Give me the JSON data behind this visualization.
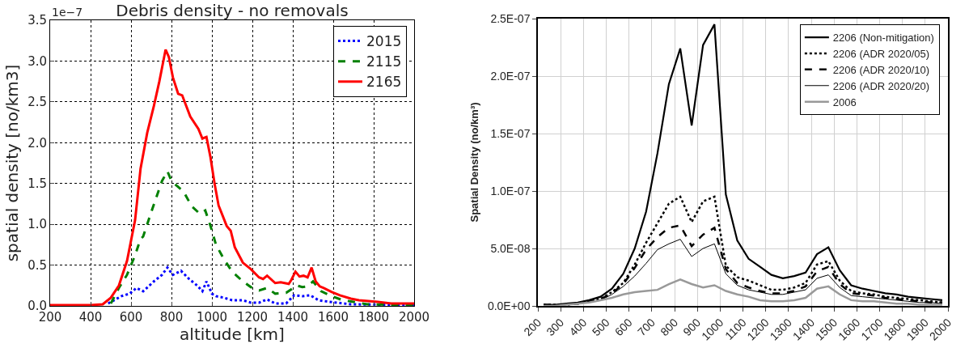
{
  "chart_data": [
    {
      "type": "line",
      "title": "Debris density - no removals",
      "xlabel": "altitude [km]",
      "ylabel": "spatial density [no/km3]",
      "annotations": [
        "1e−7"
      ],
      "xlim": [
        200,
        2000
      ],
      "xticks": [
        200,
        400,
        600,
        800,
        1000,
        1200,
        1400,
        1600,
        1800,
        2000
      ],
      "ylim": [
        0,
        3.5
      ],
      "yticks": [
        {
          "value": 0,
          "label": "0.0"
        },
        {
          "value": 0.5,
          "label": "0.5"
        },
        {
          "value": 1,
          "label": "1.0"
        },
        {
          "value": 1.5,
          "label": "1.5"
        },
        {
          "value": 2,
          "label": "2.0"
        },
        {
          "value": 2.5,
          "label": "2.5"
        },
        {
          "value": 3,
          "label": "3.0"
        },
        {
          "value": 3.5,
          "label": "3.5"
        }
      ],
      "grid": true,
      "legend": "top right",
      "series": [
        {
          "name": "2015",
          "color": "#0000ff",
          "line_style": "dotted",
          "x": [
            487,
            553,
            593,
            627,
            660,
            713,
            753,
            780,
            807,
            847,
            887,
            927,
            953,
            973,
            1000,
            1020,
            1060,
            1100,
            1153,
            1193,
            1233,
            1273,
            1313,
            1367,
            1407,
            1447,
            1487,
            1527,
            1580,
            1687,
            2000
          ],
          "values": [
            0.03,
            0.12,
            0.15,
            0.22,
            0.18,
            0.3,
            0.38,
            0.47,
            0.38,
            0.43,
            0.33,
            0.25,
            0.18,
            0.3,
            0.15,
            0.12,
            0.1,
            0.07,
            0.07,
            0.04,
            0.04,
            0.08,
            0.03,
            0.03,
            0.13,
            0.12,
            0.13,
            0.07,
            0.05,
            0.02,
            0.01
          ]
        },
        {
          "name": "2115",
          "color": "#008000",
          "line_style": "dashed",
          "x": [
            500,
            540,
            580,
            620,
            647,
            660,
            700,
            753,
            780,
            800,
            827,
            860,
            900,
            940,
            967,
            993,
            1020,
            1060,
            1100,
            1153,
            1193,
            1233,
            1273,
            1313,
            1367,
            1420,
            1447,
            1473,
            1500,
            1540,
            1593,
            1647,
            1700,
            1767,
            2000
          ],
          "values": [
            0.03,
            0.22,
            0.38,
            0.62,
            0.82,
            0.85,
            1.15,
            1.53,
            1.65,
            1.53,
            1.47,
            1.4,
            1.22,
            1.13,
            1.17,
            0.98,
            0.75,
            0.57,
            0.42,
            0.3,
            0.23,
            0.19,
            0.22,
            0.15,
            0.16,
            0.25,
            0.23,
            0.24,
            0.3,
            0.18,
            0.12,
            0.07,
            0.05,
            0.02,
            0.01
          ]
        },
        {
          "name": "2165",
          "color": "#ff0000",
          "line_style": "solid",
          "x": [
            200,
            300,
            400,
            460,
            500,
            540,
            580,
            620,
            647,
            680,
            713,
            740,
            771,
            787,
            807,
            833,
            853,
            893,
            933,
            953,
            973,
            993,
            1013,
            1033,
            1073,
            1093,
            1113,
            1153,
            1193,
            1233,
            1253,
            1273,
            1313,
            1340,
            1380,
            1393,
            1413,
            1433,
            1453,
            1473,
            1493,
            1513,
            1533,
            1553,
            1593,
            1633,
            1687,
            1727,
            1820,
            1887,
            2000
          ],
          "values": [
            0.01,
            0.01,
            0.01,
            0.02,
            0.1,
            0.25,
            0.55,
            1.05,
            1.68,
            2.12,
            2.45,
            2.75,
            3.14,
            3.05,
            2.8,
            2.6,
            2.58,
            2.32,
            2.17,
            2.05,
            2.07,
            1.82,
            1.5,
            1.23,
            0.98,
            0.92,
            0.72,
            0.53,
            0.45,
            0.35,
            0.33,
            0.37,
            0.28,
            0.29,
            0.27,
            0.32,
            0.42,
            0.36,
            0.37,
            0.35,
            0.47,
            0.3,
            0.24,
            0.22,
            0.17,
            0.13,
            0.09,
            0.07,
            0.05,
            0.03,
            0.03
          ]
        }
      ]
    },
    {
      "type": "line",
      "ylabel": "Spatial Density (no/km³)",
      "xlim": [
        200,
        2000
      ],
      "xticks": [
        200,
        300,
        400,
        500,
        600,
        700,
        800,
        900,
        1000,
        1100,
        1200,
        1300,
        1400,
        1500,
        1600,
        1700,
        1800,
        1900,
        2000
      ],
      "ylim": [
        0,
        2.5e-07
      ],
      "yticks": [
        {
          "value": 0,
          "label": "0.0E+00"
        },
        {
          "value": 5e-08,
          "label": "5.0E-08"
        },
        {
          "value": 1e-07,
          "label": "1.0E-07"
        },
        {
          "value": 1.5e-07,
          "label": "1.5E-07"
        },
        {
          "value": 2e-07,
          "label": "2.0E-07"
        },
        {
          "value": 2.5e-07,
          "label": "2.5E-07"
        }
      ],
      "grid": true,
      "legend": "top right",
      "x": [
        225,
        275,
        325,
        375,
        425,
        475,
        525,
        575,
        625,
        675,
        725,
        775,
        825,
        875,
        925,
        975,
        1025,
        1075,
        1125,
        1175,
        1225,
        1275,
        1325,
        1375,
        1425,
        1475,
        1525,
        1575,
        1625,
        1675,
        1725,
        1775,
        1825,
        1875,
        1925,
        1975
      ],
      "series": [
        {
          "name": "2206 (Non-mitigation)",
          "color": "#000000",
          "line_style": "solid",
          "values": [
            1e-09,
            1e-09,
            2e-09,
            3e-09,
            5e-09,
            8e-09,
            1.5e-08,
            2.8e-08,
            5e-08,
            8.2e-08,
            1.33e-07,
            1.93e-07,
            2.24e-07,
            1.57e-07,
            2.27e-07,
            2.45e-07,
            9.7e-08,
            5.7e-08,
            4.1e-08,
            3.4e-08,
            2.7e-08,
            2.4e-08,
            2.6e-08,
            2.9e-08,
            4.5e-08,
            5.1e-08,
            3.1e-08,
            1.8e-08,
            1.5e-08,
            1.3e-08,
            1.1e-08,
            1e-08,
            8e-09,
            7e-09,
            6e-09,
            5e-09
          ]
        },
        {
          "name": "2206 (ADR 2020/05)",
          "color": "#000000",
          "line_style": "dotted",
          "values": [
            1e-09,
            1e-09,
            1e-09,
            2e-09,
            4e-09,
            6e-09,
            1.2e-08,
            2e-08,
            3.6e-08,
            5.5e-08,
            7.2e-08,
            8.9e-08,
            9.5e-08,
            7.3e-08,
            9.1e-08,
            9.5e-08,
            3.5e-08,
            2.5e-08,
            2.2e-08,
            1.8e-08,
            1.4e-08,
            1.4e-08,
            1.6e-08,
            2e-08,
            3.6e-08,
            3.9e-08,
            2.2e-08,
            1.3e-08,
            1.1e-08,
            1e-08,
            8e-09,
            7e-09,
            6e-09,
            5e-09,
            4e-09,
            3e-09
          ]
        },
        {
          "name": "2206 (ADR 2020/10)",
          "color": "#000000",
          "line_style": "dashed",
          "values": [
            1e-09,
            1e-09,
            1e-09,
            2e-09,
            4e-09,
            6e-09,
            1.1e-08,
            1.9e-08,
            3.3e-08,
            4.9e-08,
            6e-08,
            6.8e-08,
            7e-08,
            5.2e-08,
            6.2e-08,
            6.8e-08,
            3.2e-08,
            2e-08,
            1.6e-08,
            1.3e-08,
            1.1e-08,
            1.1e-08,
            1.3e-08,
            1.7e-08,
            3e-08,
            3.4e-08,
            1.9e-08,
            1.1e-08,
            1e-08,
            9e-09,
            7e-09,
            6e-09,
            5e-09,
            4e-09,
            3e-09,
            3e-09
          ]
        },
        {
          "name": "2206 (ADR 2020/20)",
          "color": "#000000",
          "line_style": "solid",
          "values": [
            1e-09,
            1e-09,
            1e-09,
            2e-09,
            3e-09,
            5e-09,
            1e-08,
            1.7e-08,
            2.6e-08,
            3.7e-08,
            4.9e-08,
            5.4e-08,
            5.8e-08,
            4.3e-08,
            5e-08,
            5.4e-08,
            2.8e-08,
            1.8e-08,
            1.4e-08,
            1.2e-08,
            1e-08,
            1e-08,
            1.2e-08,
            1.4e-08,
            2.4e-08,
            2.7e-08,
            1.6e-08,
            9e-09,
            8e-09,
            7e-09,
            6e-09,
            5e-09,
            4e-09,
            3e-09,
            3e-09,
            2e-09
          ]
        },
        {
          "name": "2006",
          "color": "#999999",
          "line_style": "solid",
          "values": [
            0,
            0,
            1e-09,
            2e-09,
            3e-09,
            5e-09,
            7e-09,
            1e-08,
            1.2e-08,
            1.3e-08,
            1.4e-08,
            1.9e-08,
            2.3e-08,
            1.9e-08,
            1.6e-08,
            1.8e-08,
            1.3e-08,
            1e-08,
            8e-09,
            5e-09,
            4e-09,
            4e-09,
            5e-09,
            7e-09,
            1.5e-08,
            1.7e-08,
            1e-08,
            5e-09,
            4e-09,
            4e-09,
            3e-09,
            2e-09,
            2e-09,
            1e-09,
            1e-09,
            1e-09
          ]
        }
      ]
    }
  ]
}
